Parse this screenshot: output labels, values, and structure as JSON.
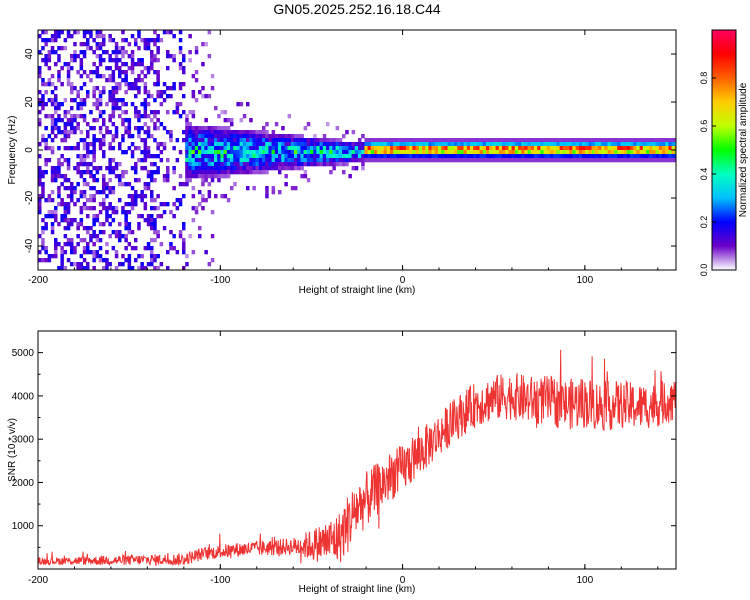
{
  "title": "GN05.2025.252.16.18.C44",
  "chart_data": [
    {
      "type": "heatmap",
      "name": "spectrogram",
      "xlabel": "Height of straight line (km)",
      "ylabel": "Frequency (Hz)",
      "xlim": [
        -200,
        150
      ],
      "ylim": [
        -50,
        50
      ],
      "xticks": [
        -200,
        -100,
        0,
        100
      ],
      "yticks": [
        -40,
        -20,
        0,
        20,
        40
      ],
      "colorbar": {
        "label": "Normalized spectral amplitude",
        "range": [
          0,
          1
        ],
        "ticks": [
          "0.0",
          "0.2",
          "0.4",
          "0.6",
          "0.8"
        ],
        "tick_values": [
          0.0,
          0.2,
          0.4,
          0.6,
          0.8
        ],
        "colors": [
          "#ffffff",
          "#6a00c8",
          "#0000ff",
          "#00c0ff",
          "#00ffc0",
          "#00ff00",
          "#c0ff00",
          "#ffcc00",
          "#ff6000",
          "#ff0000",
          "#ff0060"
        ]
      },
      "regions": [
        {
          "x": [
            -200,
            -120
          ],
          "freq_spread": 50,
          "amplitude": [
            0.05,
            0.2
          ],
          "description": "broadband noise"
        },
        {
          "x": [
            -120,
            -22
          ],
          "center_freq": 0,
          "freq_spread": [
            12,
            4
          ],
          "amplitude": [
            0.1,
            0.5
          ]
        },
        {
          "x": [
            -22,
            150
          ],
          "center_freq": 1,
          "freq_spread": 3,
          "amplitude": [
            0.6,
            1.0
          ]
        }
      ]
    },
    {
      "type": "line",
      "name": "snr",
      "xlabel": "Height of straight line (km)",
      "ylabel": "SNR (10 * v/v)",
      "xlim": [
        -200,
        150
      ],
      "ylim": [
        0,
        5500
      ],
      "xticks": [
        -200,
        -100,
        0,
        100
      ],
      "yticks": [
        1000,
        2000,
        3000,
        4000,
        5000
      ],
      "color": "#ee3333",
      "trend": {
        "x": [
          -200,
          -120,
          -110,
          -90,
          -70,
          -50,
          -35,
          -25,
          -15,
          -5,
          0,
          10,
          20,
          30,
          40,
          50,
          60,
          70,
          80,
          90,
          100,
          110,
          120,
          130,
          140,
          150
        ],
        "y": [
          180,
          220,
          350,
          450,
          500,
          550,
          700,
          1400,
          1800,
          2200,
          2300,
          2700,
          3100,
          3500,
          3800,
          3950,
          4000,
          3900,
          3900,
          3800,
          3850,
          3750,
          3800,
          3750,
          3800,
          3950
        ]
      },
      "noise_amplitude": {
        "x": [
          -200,
          -110,
          -60,
          -30,
          -10,
          20,
          60,
          100,
          150
        ],
        "y": [
          80,
          150,
          200,
          700,
          600,
          500,
          550,
          600,
          500
        ]
      }
    }
  ]
}
